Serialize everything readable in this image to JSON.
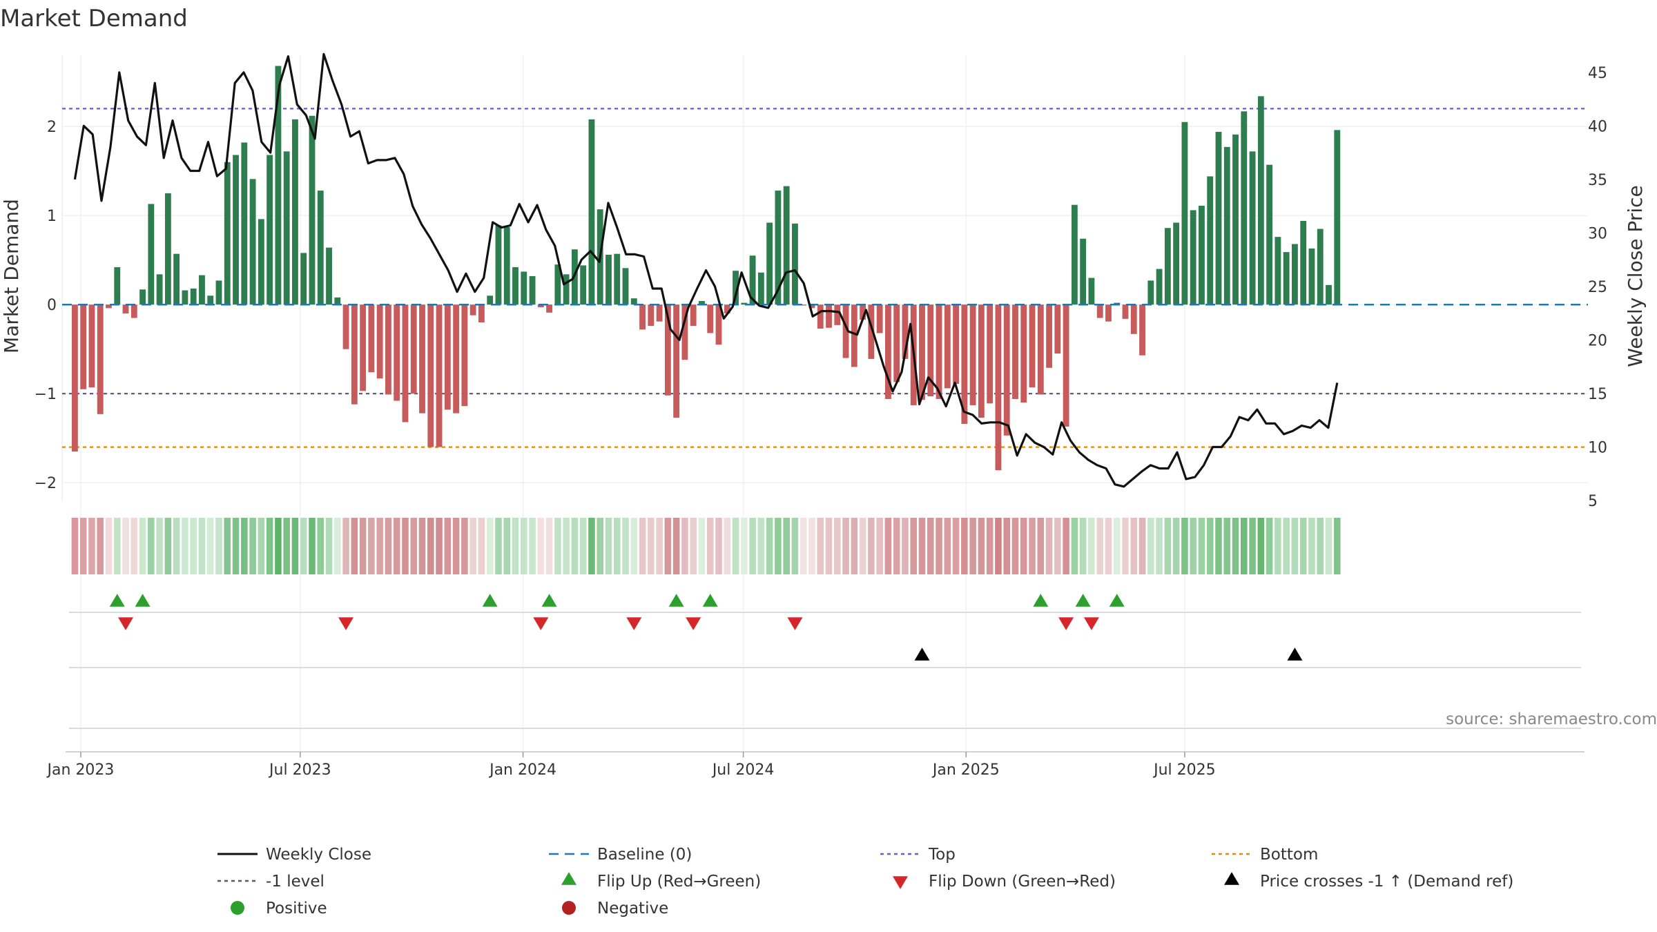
{
  "chart_data": {
    "type": "bar",
    "title": "Market Demand",
    "ylabel_left": "Market Demand",
    "ylabel_right": "Weekly Close Price",
    "source": "source: sharemaestro.com",
    "ylim_left": [
      -2.2,
      2.8
    ],
    "ylim_right": [
      5,
      46.6
    ],
    "yticks_left": [
      {
        "v": 2,
        "t": "2"
      },
      {
        "v": 1,
        "t": "1"
      },
      {
        "v": 0,
        "t": "0"
      },
      {
        "v": -1,
        "t": "−1"
      },
      {
        "v": -2,
        "t": "−2"
      }
    ],
    "yticks_right": [
      5,
      10,
      15,
      20,
      25,
      30,
      35,
      40,
      45
    ],
    "x_start_index": -1.5,
    "x_end_index": 178.6,
    "xticks": [
      {
        "i": 0.7,
        "label": "Jan 2023"
      },
      {
        "i": 26.6,
        "label": "Jul 2023"
      },
      {
        "i": 52.9,
        "label": "Jan 2024"
      },
      {
        "i": 78.9,
        "label": "Jul 2024"
      },
      {
        "i": 105.2,
        "label": "Jan 2025"
      },
      {
        "i": 131.0,
        "label": "Jul 2025"
      }
    ],
    "reference_lines": {
      "top": 2.2,
      "minus_one": -1,
      "bottom": -1.6,
      "baseline": 0
    },
    "demand": [
      -1.65,
      -0.95,
      -0.93,
      -1.23,
      -0.04,
      0.42,
      -0.1,
      -0.15,
      0.17,
      1.13,
      0.34,
      1.25,
      0.57,
      0.16,
      0.18,
      0.33,
      0.1,
      0.27,
      1.6,
      1.68,
      1.82,
      1.41,
      0.96,
      1.68,
      2.68,
      1.72,
      2.08,
      0.58,
      2.12,
      1.28,
      0.64,
      0.08,
      -0.5,
      -1.12,
      -0.97,
      -0.76,
      -0.83,
      -1.01,
      -1.08,
      -1.32,
      -1.0,
      -1.22,
      -1.6,
      -1.6,
      -1.18,
      -1.22,
      -1.14,
      -0.12,
      -0.2,
      0.1,
      0.89,
      0.87,
      0.42,
      0.37,
      0.32,
      -0.03,
      -0.09,
      0.45,
      0.34,
      0.62,
      0.44,
      2.08,
      1.07,
      0.56,
      0.57,
      0.41,
      0.07,
      -0.28,
      -0.24,
      -0.19,
      -1.02,
      -1.27,
      -0.62,
      -0.24,
      0.04,
      -0.32,
      -0.45,
      -0.1,
      0.38,
      0.02,
      0.55,
      0.36,
      0.92,
      1.28,
      1.33,
      0.91,
      -0.01,
      -0.04,
      -0.27,
      -0.26,
      -0.23,
      -0.6,
      -0.7,
      -0.17,
      -0.61,
      -0.32,
      -1.06,
      -0.87,
      -0.61,
      -1.13,
      -1.07,
      -1.03,
      -1.06,
      -0.94,
      -0.89,
      -1.34,
      -1.13,
      -1.27,
      -1.11,
      -1.86,
      -1.47,
      -1.06,
      -1.1,
      -0.93,
      -1.01,
      -0.71,
      -0.55,
      -1.37,
      1.12,
      0.74,
      0.3,
      -0.15,
      -0.19,
      0.02,
      -0.16,
      -0.33,
      -0.57,
      0.27,
      0.4,
      0.86,
      0.92,
      2.05,
      1.06,
      1.11,
      1.44,
      1.94,
      1.77,
      1.91,
      2.17,
      1.72,
      2.34,
      1.57,
      0.76,
      0.59,
      0.68,
      0.94,
      0.63,
      0.85,
      0.22,
      1.96
    ],
    "price_series": [
      [
        0,
        35
      ],
      [
        1,
        40
      ],
      [
        2,
        39.2
      ],
      [
        3,
        33
      ],
      [
        4,
        38
      ],
      [
        5,
        45
      ],
      [
        6,
        40.5
      ],
      [
        7,
        39
      ],
      [
        8,
        38.2
      ],
      [
        9,
        44
      ],
      [
        10,
        37
      ],
      [
        11,
        40.5
      ],
      [
        12,
        37
      ],
      [
        13,
        35.8
      ],
      [
        14,
        35.8
      ],
      [
        15,
        38.5
      ],
      [
        16,
        35.3
      ],
      [
        17,
        36
      ],
      [
        18,
        44
      ],
      [
        19,
        45
      ],
      [
        20,
        43.3
      ],
      [
        21,
        38.5
      ],
      [
        22,
        37.5
      ],
      [
        23,
        43.8
      ],
      [
        24,
        46.5
      ],
      [
        25,
        42
      ],
      [
        26,
        41
      ],
      [
        27,
        38.8
      ],
      [
        28,
        46.7
      ],
      [
        29,
        44.2
      ],
      [
        30,
        42
      ],
      [
        31,
        39
      ],
      [
        32,
        39.5
      ],
      [
        33,
        36.5
      ],
      [
        34,
        36.8
      ],
      [
        35,
        36.8
      ],
      [
        36,
        37
      ],
      [
        37,
        35.5
      ],
      [
        38,
        32.5
      ],
      [
        39,
        30.8
      ],
      [
        40,
        29.5
      ],
      [
        41,
        28
      ],
      [
        42,
        26.5
      ],
      [
        43,
        24.5
      ],
      [
        44,
        26.2
      ],
      [
        45,
        24.5
      ],
      [
        46,
        25.8
      ],
      [
        47,
        31
      ],
      [
        48,
        30.5
      ],
      [
        49,
        30.7
      ],
      [
        50,
        32.7
      ],
      [
        51,
        31
      ],
      [
        52,
        32.6
      ],
      [
        53,
        30.3
      ],
      [
        54,
        28.8
      ],
      [
        55,
        25.2
      ],
      [
        56,
        25.7
      ],
      [
        57,
        27.5
      ],
      [
        58,
        28.3
      ],
      [
        59,
        27.3
      ],
      [
        60,
        32.8
      ],
      [
        61,
        30.5
      ],
      [
        62,
        28
      ],
      [
        63,
        28
      ],
      [
        64,
        27.8
      ],
      [
        65,
        24.8
      ],
      [
        66,
        24.8
      ],
      [
        67,
        21
      ],
      [
        68,
        20
      ],
      [
        69,
        23
      ],
      [
        70,
        24.8
      ],
      [
        71,
        26.5
      ],
      [
        72,
        25
      ],
      [
        73,
        22
      ],
      [
        74,
        23.1
      ],
      [
        75,
        26.3
      ],
      [
        76,
        24
      ],
      [
        77,
        23.2
      ],
      [
        78,
        23
      ],
      [
        79,
        24.5
      ],
      [
        80,
        26.3
      ],
      [
        81,
        26.5
      ],
      [
        82,
        25.3
      ],
      [
        83,
        22.2
      ],
      [
        84,
        22.7
      ],
      [
        85,
        22.7
      ],
      [
        86,
        22.6
      ],
      [
        87,
        20.8
      ],
      [
        88,
        20.5
      ],
      [
        89,
        22.8
      ],
      [
        90,
        20.2
      ],
      [
        91,
        17.5
      ],
      [
        92,
        15.2
      ],
      [
        93,
        17
      ],
      [
        94,
        21.5
      ],
      [
        95,
        14
      ],
      [
        96,
        16.5
      ],
      [
        97,
        15.5
      ],
      [
        98,
        13.8
      ],
      [
        99,
        16
      ],
      [
        100,
        13.3
      ],
      [
        101,
        13
      ],
      [
        102,
        12.2
      ],
      [
        103,
        12.3
      ],
      [
        104,
        12.3
      ],
      [
        105,
        12.0
      ],
      [
        106,
        9.2
      ],
      [
        107,
        11.2
      ],
      [
        108,
        10.4
      ],
      [
        109,
        10
      ],
      [
        110,
        9.3
      ],
      [
        111,
        12.3
      ],
      [
        112,
        10.6
      ],
      [
        113,
        9.5
      ],
      [
        114,
        8.8
      ],
      [
        115,
        8.3
      ],
      [
        116,
        8
      ],
      [
        117,
        6.5
      ],
      [
        118,
        6.3
      ],
      [
        119,
        7.0
      ],
      [
        120,
        7.7
      ],
      [
        121,
        8.3
      ],
      [
        122,
        8.0
      ],
      [
        123,
        8.0
      ],
      [
        124,
        9.5
      ],
      [
        125,
        7.0
      ],
      [
        126,
        7.2
      ],
      [
        127,
        8.3
      ],
      [
        128,
        10
      ],
      [
        129,
        10
      ],
      [
        130,
        11.0
      ],
      [
        131,
        12.8
      ],
      [
        132,
        12.5
      ],
      [
        133,
        13.5
      ],
      [
        134,
        12.2
      ],
      [
        135,
        12.2
      ],
      [
        136,
        11.2
      ],
      [
        137,
        11.5
      ],
      [
        138,
        12.0
      ],
      [
        139,
        11.8
      ],
      [
        140,
        12.5
      ],
      [
        141,
        11.8
      ],
      [
        142,
        16
      ]
    ],
    "flip_up_indices": [
      5,
      8,
      49,
      56,
      71,
      75,
      114,
      119,
      123
    ],
    "flip_down_indices": [
      6,
      32,
      55,
      66,
      73,
      85,
      117,
      120
    ],
    "cross_indices": [
      100,
      144
    ],
    "heat_colors": [
      "#d7979b",
      "#d8a0a3",
      "#dba7a9",
      "#d7999c",
      "#f0d9da",
      "#c2e3c7",
      "#f1dedf",
      "#efd7d8",
      "#cce9d0",
      "#9bd0a3",
      "#bfe1c4",
      "#8ecb98",
      "#b6ddbc",
      "#cce9d0",
      "#cce9d0",
      "#c1e2c6",
      "#d1ebd4",
      "#c4e4c9",
      "#84c58e",
      "#7fc289",
      "#77be82",
      "#8fcb98",
      "#a8d6af",
      "#7fc289",
      "#5cb46a",
      "#7bc085",
      "#6cb977",
      "#b6ddbc",
      "#6bb976",
      "#8ecb98",
      "#b0daB6",
      "#d6edd9",
      "#e0b7b9",
      "#d39193",
      "#d69a9d",
      "#d9a5a8",
      "#d9a3a6",
      "#d69c9f",
      "#d6999c",
      "#d39193",
      "#d69c9f",
      "#d49497",
      "#d18c8f",
      "#d18c8f",
      "#d49698",
      "#d49597",
      "#d59799",
      "#ecd1d2",
      "#ead0d1",
      "#d8eedb",
      "#a6d5ad",
      "#a8d6af",
      "#c1e2c6",
      "#c4e4c9",
      "#c7e5cb",
      "#f2e0e1",
      "#f1dedf",
      "#bfe1c4",
      "#c4e4c9",
      "#b6ddbc",
      "#bfe1c4",
      "#6cb977",
      "#9bd0a3",
      "#b6ddbc",
      "#b6ddbc",
      "#c2e3c7",
      "#d8eedb",
      "#e6c6c8",
      "#e7cbcc",
      "#e8cdce",
      "#d59799",
      "#d39194",
      "#e2bcbe",
      "#e8cdce",
      "#dcefdf",
      "#e5c4c6",
      "#e3bfc1",
      "#f0dadb",
      "#bfe1c4",
      "#dcefdf",
      "#b6ddbc",
      "#c1e2c6",
      "#a3d4ab",
      "#8ecb98",
      "#8ecb98",
      "#a3d4ab",
      "#f2e2e3",
      "#f2e0e1",
      "#e5c4c6",
      "#e5c4c6",
      "#e6c8c9",
      "#dfb4b6",
      "#ddaeb1",
      "#ecd1d2",
      "#dfb4b6",
      "#e3bfc1",
      "#d59799",
      "#d9a3a6",
      "#dfb4b6",
      "#d6999c",
      "#d59799",
      "#d59799",
      "#d59799",
      "#d89fa1",
      "#d89fa1",
      "#d48f92",
      "#d59799",
      "#d49597",
      "#d59799",
      "#cf8286",
      "#d39194",
      "#d59799",
      "#d59799",
      "#d89fa1",
      "#d69a9d",
      "#dfb4b6",
      "#e3bfc1",
      "#d39194",
      "#9bd0a3",
      "#b2dbb8",
      "#cfeacf",
      "#ecd1d2",
      "#ebcfd0",
      "#dcefdf",
      "#ebcfd0",
      "#e4c2c4",
      "#dfb4b6",
      "#c7e5cb",
      "#c1e2c6",
      "#a8d6af",
      "#a6d5ad",
      "#7cc186",
      "#9ed1a6",
      "#9bd0a3",
      "#8ecb98",
      "#7cc186",
      "#84c58e",
      "#7cc186",
      "#6fba7a",
      "#7fc289",
      "#66b672",
      "#8ecb98",
      "#b2dbb8",
      "#b6ddbc",
      "#b2dbb8",
      "#a8d6af",
      "#b6ddbc",
      "#a8d6af",
      "#c9e6cd",
      "#82c38c"
    ],
    "legend": [
      {
        "label": "Weekly Close",
        "kind": "line-black"
      },
      {
        "label": "Baseline (0)",
        "kind": "dash-blue"
      },
      {
        "label": "Top",
        "kind": "dot-purple"
      },
      {
        "label": "Bottom",
        "kind": "dot-orange"
      },
      {
        "label": "-1 level",
        "kind": "dot-gray"
      },
      {
        "label": "Flip Up (Red→Green)",
        "kind": "tri-up-green"
      },
      {
        "label": "Flip Down (Green→Red)",
        "kind": "tri-down-red"
      },
      {
        "label": "Price crosses -1 ↑ (Demand ref)",
        "kind": "tri-up-black"
      },
      {
        "label": "Positive",
        "kind": "dot-green"
      },
      {
        "label": "Negative",
        "kind": "dot-red"
      }
    ],
    "colors": {
      "positive_bar": "#2e7d4f",
      "negative_bar": "#c75b5b",
      "price_line": "#111111",
      "baseline": "#1f77b4",
      "top": "#6a5acd",
      "minus_one": "#555577",
      "bottom": "#e08a00",
      "flip_up": "#2ca02c",
      "flip_down": "#d62728",
      "cross": "#000000",
      "legend_positive": "#2ca02c",
      "legend_negative": "#b22222"
    }
  }
}
